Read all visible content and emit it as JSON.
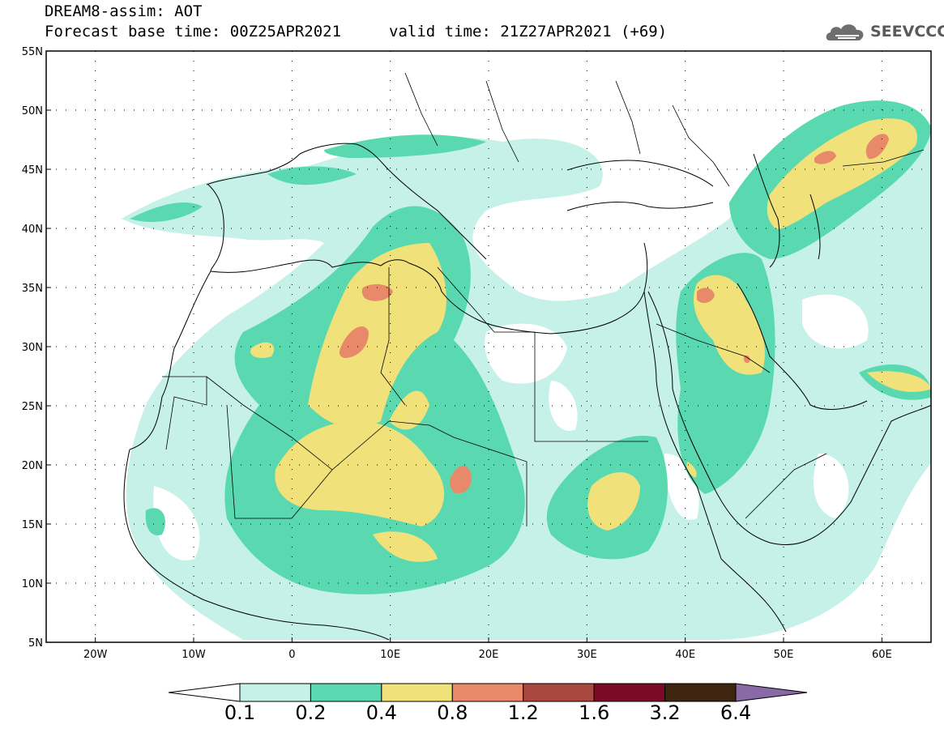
{
  "header": {
    "title_line1": "DREAM8-assim: AOT",
    "title_line2": "Forecast base time: 00Z25APR2021",
    "valid_time": "valid time: 21Z27APR2021 (+69)",
    "logo_text": "SEEVCCC",
    "logo_icon": "cloud-icon"
  },
  "map": {
    "lat_labels": [
      "55N",
      "50N",
      "45N",
      "40N",
      "35N",
      "30N",
      "25N",
      "20N",
      "15N",
      "10N",
      "5N"
    ],
    "lon_labels": [
      "20W",
      "10W",
      "0",
      "10E",
      "20E",
      "30E",
      "40E",
      "50E",
      "60E"
    ],
    "lat_range": [
      5,
      55
    ],
    "lon_range": [
      -25,
      65
    ],
    "variable": "AOT",
    "grid": "dotted"
  },
  "colorbar": {
    "labels": [
      "0.1",
      "0.2",
      "0.4",
      "0.8",
      "1.2",
      "1.6",
      "3.2",
      "6.4"
    ],
    "colors": [
      "#ffffff",
      "#c6f1e9",
      "#5ad9b0",
      "#f1e17a",
      "#e8896a",
      "#a9483e",
      "#7a0a25",
      "#3d2510",
      "#8a6aa6"
    ]
  }
}
